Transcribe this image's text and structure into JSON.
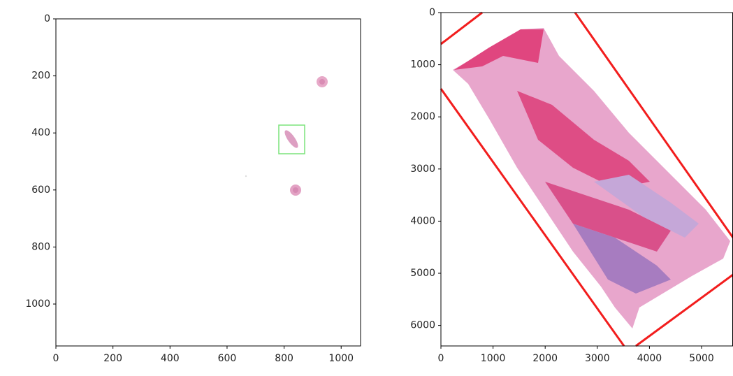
{
  "chart_data": [
    {
      "type": "image",
      "xlim": [
        0,
        1068
      ],
      "ylim": [
        1147,
        0
      ],
      "xticks": [
        0,
        200,
        400,
        600,
        800,
        1000
      ],
      "yticks": [
        0,
        200,
        400,
        600,
        800,
        1000
      ]
    },
    {
      "type": "image",
      "xlim": [
        0,
        5603
      ],
      "ylim": [
        6394,
        0
      ],
      "xticks": [
        0,
        1000,
        2000,
        3000,
        4000,
        5000
      ],
      "yticks": [
        0,
        1000,
        2000,
        3000,
        4000,
        5000,
        6000
      ]
    }
  ]
}
